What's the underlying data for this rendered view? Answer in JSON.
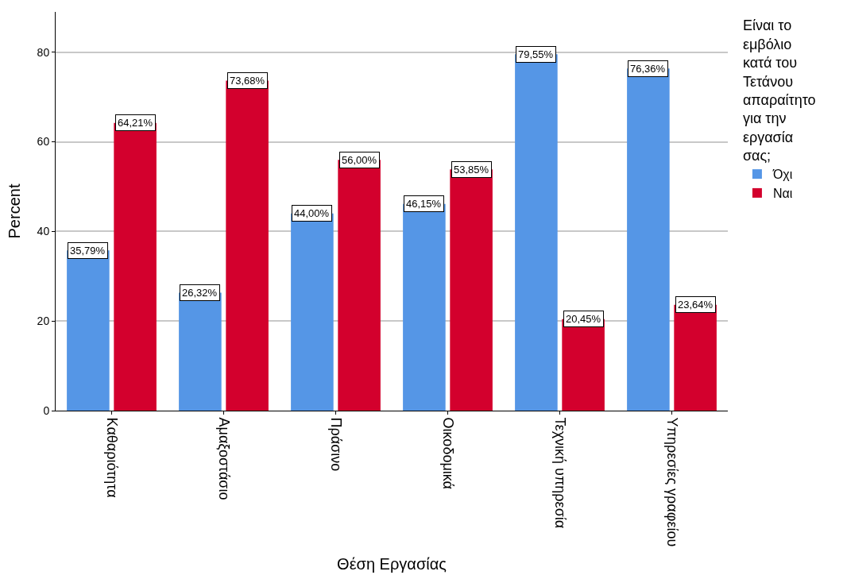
{
  "chart_data": {
    "type": "bar",
    "xlabel": "Θέση Εργασίας",
    "ylabel": "Percent",
    "legend_title": "Είναι το εμβόλιο κατά του Τετάνου απαραίτητο για την εργασία σας;",
    "categories": [
      "Καθαριότητα",
      "Αμαξοστάσιο",
      "Πράσινο",
      "Οικοδομικά",
      "Τεχνική υπηρεσία",
      "Υπηρεσίες γραφείου"
    ],
    "series": [
      {
        "name": "Όχι",
        "color": "#5596e6",
        "values": [
          35.79,
          26.32,
          44.0,
          46.15,
          79.55,
          76.36
        ],
        "value_labels": [
          "35,79%",
          "26,32%",
          "44,00%",
          "46,15%",
          "79,55%",
          "76,36%"
        ]
      },
      {
        "name": "Ναι",
        "color": "#d3002d",
        "values": [
          64.21,
          73.68,
          56.0,
          53.85,
          20.45,
          23.64
        ],
        "value_labels": [
          "64,21%",
          "73,68%",
          "56,00%",
          "53,85%",
          "20,45%",
          "23,64%"
        ]
      }
    ],
    "ylim": [
      0,
      89
    ],
    "yticks": [
      0,
      20,
      40,
      60,
      80
    ],
    "grid": "y",
    "legend": "top right"
  }
}
